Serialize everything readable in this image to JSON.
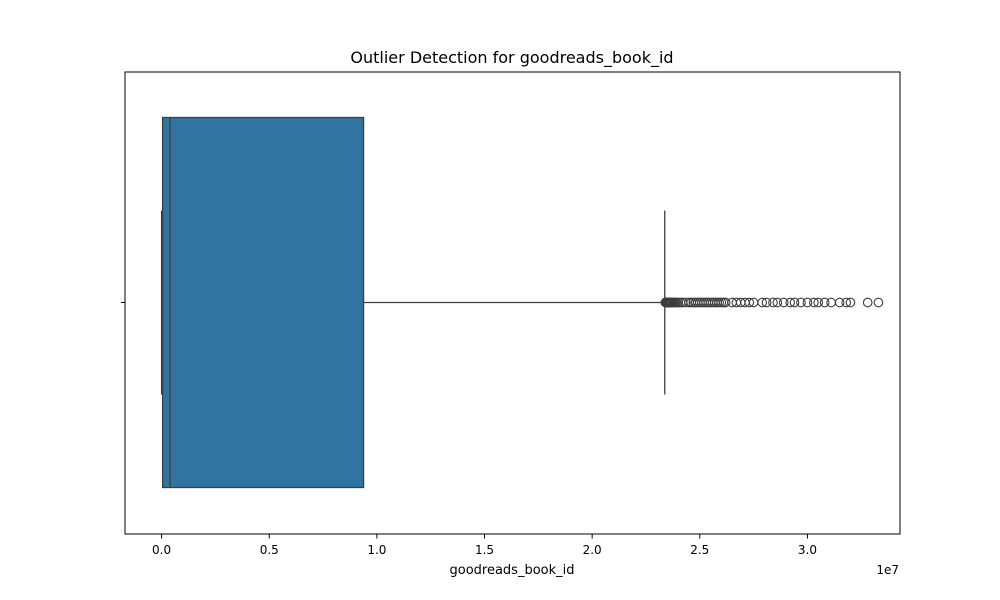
{
  "chart_data": {
    "type": "boxplot",
    "orientation": "horizontal",
    "title": "Outlier Detection for goodreads_book_id",
    "xlabel": "goodreads_book_id",
    "ylabel": "",
    "x_offset_label": "1e7",
    "xlim": [
      -1700000,
      34300000
    ],
    "xticks": [
      {
        "value": 0,
        "label": "0.0"
      },
      {
        "value": 5000000,
        "label": "0.5"
      },
      {
        "value": 10000000,
        "label": "1.0"
      },
      {
        "value": 15000000,
        "label": "1.5"
      },
      {
        "value": 20000000,
        "label": "2.0"
      },
      {
        "value": 25000000,
        "label": "2.5"
      },
      {
        "value": 30000000,
        "label": "3.0"
      }
    ],
    "box": {
      "whisker_low": 1,
      "q1": 46275,
      "median": 394966,
      "q3": 9382225,
      "whisker_high": 23373000
    },
    "outliers": [
      23400000,
      23430000,
      23460000,
      23490000,
      23520000,
      23550000,
      23580000,
      23620000,
      23660000,
      23700000,
      23750000,
      23800000,
      23860000,
      23920000,
      24000000,
      24100000,
      24200000,
      24350000,
      24500000,
      24600000,
      24700000,
      24800000,
      24900000,
      25000000,
      25100000,
      25200000,
      25300000,
      25400000,
      25500000,
      25600000,
      25700000,
      25800000,
      25900000,
      26000000,
      26100000,
      26200000,
      26500000,
      26700000,
      26900000,
      27100000,
      27300000,
      27500000,
      27900000,
      28100000,
      28400000,
      28600000,
      28900000,
      29200000,
      29400000,
      29700000,
      30000000,
      30300000,
      30500000,
      30800000,
      31100000,
      31500000,
      31800000,
      32000000,
      32800000,
      33300000
    ],
    "grid": false,
    "colors": {
      "box_fill": "#3274a1",
      "line": "#3d3d3d",
      "axes": "#000000"
    }
  }
}
